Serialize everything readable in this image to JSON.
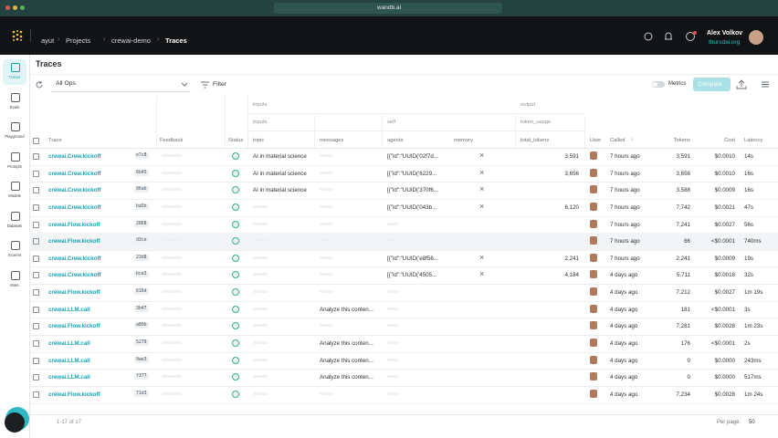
{
  "browser": {
    "url": "wandb.ai"
  },
  "header": {
    "breadcrumbs": [
      "ayut",
      "Projects",
      "crewai-demo",
      "Traces"
    ],
    "user_name": "Alex Volkov",
    "user_org": "thursdai.org"
  },
  "sidebar": [
    "Traces",
    "Evals",
    "Playground",
    "Prompts",
    "Models",
    "Datasets",
    "Scorers",
    "More"
  ],
  "page": {
    "title": "Traces",
    "op_filter": "All Ops",
    "filter": "Filter",
    "metrics": "Metrics",
    "compare": "Compare"
  },
  "table": {
    "groups": [
      "inputs",
      "output"
    ],
    "subgroups": [
      "inputs",
      "self",
      "token_usage"
    ],
    "columns": [
      "Trace",
      "Feedback",
      "Status",
      "topic",
      "messages",
      "agents",
      "memory",
      "total_tokens",
      "User",
      "Called",
      "Tokens",
      "Cost",
      "Latency"
    ],
    "rows": [
      {
        "trace": "crewai.Crew.kickoff",
        "id": "e7c8",
        "topic": "AI in material science",
        "agents": "[{\"id\":\"UUID('02f7d...",
        "total_tokens": "3,591",
        "called": "7 hours ago",
        "tokens": "3,591",
        "cost": "$0.0010",
        "latency": "14s"
      },
      {
        "trace": "crewai.Crew.kickoff",
        "id": "6b45",
        "topic": "AI in material science",
        "agents": "[{\"id\":\"UUID('6229...",
        "total_tokens": "3,656",
        "called": "7 hours ago",
        "tokens": "3,656",
        "cost": "$0.0010",
        "latency": "16s"
      },
      {
        "trace": "crewai.Crew.kickoff",
        "id": "06ab",
        "topic": "AI in material science",
        "agents": "[{\"id\":\"UUID('370f6...",
        "called": "7 hours ago",
        "tokens": "3,588",
        "cost": "$0.0009",
        "latency": "16s"
      },
      {
        "trace": "crewai.Crew.kickoff",
        "id": "ba5b",
        "agents": "[{\"id\":\"UUID('043b...",
        "total_tokens": "6,120",
        "called": "7 hours ago",
        "tokens": "7,742",
        "cost": "$0.0021",
        "latency": "47s"
      },
      {
        "trace": "crewai.Flow.kickoff",
        "id": "2868",
        "called": "7 hours ago",
        "tokens": "7,241",
        "cost": "$0.0027",
        "latency": "56s"
      },
      {
        "trace": "crewai.Flow.kickoff",
        "id": "d3ce",
        "called": "7 hours ago",
        "tokens": "66",
        "cost": "<$0.0001",
        "latency": "740ms"
      },
      {
        "trace": "crewai.Crew.kickoff",
        "id": "23d8",
        "agents": "[{\"id\":\"UUID('e8f56...",
        "total_tokens": "2,241",
        "called": "7 hours ago",
        "tokens": "2,241",
        "cost": "$0.0009",
        "latency": "19s"
      },
      {
        "trace": "crewai.Crew.kickoff",
        "id": "bca3",
        "agents": "[{\"id\":\"UUID('4505...",
        "total_tokens": "4,184",
        "called": "4 days ago",
        "tokens": "5,711",
        "cost": "$0.0016",
        "latency": "32s"
      },
      {
        "trace": "crewai.Flow.kickoff",
        "id": "616d",
        "called": "4 days ago",
        "tokens": "7,212",
        "cost": "$0.0027",
        "latency": "1m 19s"
      },
      {
        "trace": "crewai.LLM.call",
        "id": "3b47",
        "messages": "Analyze this conten...",
        "called": "4 days ago",
        "tokens": "181",
        "cost": "<$0.0001",
        "latency": "3s"
      },
      {
        "trace": "crewai.Flow.kickoff",
        "id": "a80b",
        "called": "4 days ago",
        "tokens": "7,281",
        "cost": "$0.0028",
        "latency": "1m 23s"
      },
      {
        "trace": "crewai.LLM.call",
        "id": "5279",
        "messages": "Analyze this conten...",
        "called": "4 days ago",
        "tokens": "176",
        "cost": "<$0.0001",
        "latency": "2s"
      },
      {
        "trace": "crewai.LLM.call",
        "id": "9ae3",
        "messages": "Analyze this conten...",
        "called": "4 days ago",
        "tokens": "0",
        "cost": "$0.0000",
        "latency": "243ms"
      },
      {
        "trace": "crewai.LLM.call",
        "id": "f377",
        "messages": "Analyze this conten...",
        "called": "4 days ago",
        "tokens": "0",
        "cost": "$0.0000",
        "latency": "517ms"
      },
      {
        "trace": "crewai.Flow.kickoff",
        "id": "71d3",
        "called": "4 days ago",
        "tokens": "7,234",
        "cost": "$0.0028",
        "latency": "1m 24s"
      }
    ]
  },
  "footer": {
    "range": "1-17 of 17",
    "per_page_label": "Per page:",
    "per_page": "50"
  }
}
